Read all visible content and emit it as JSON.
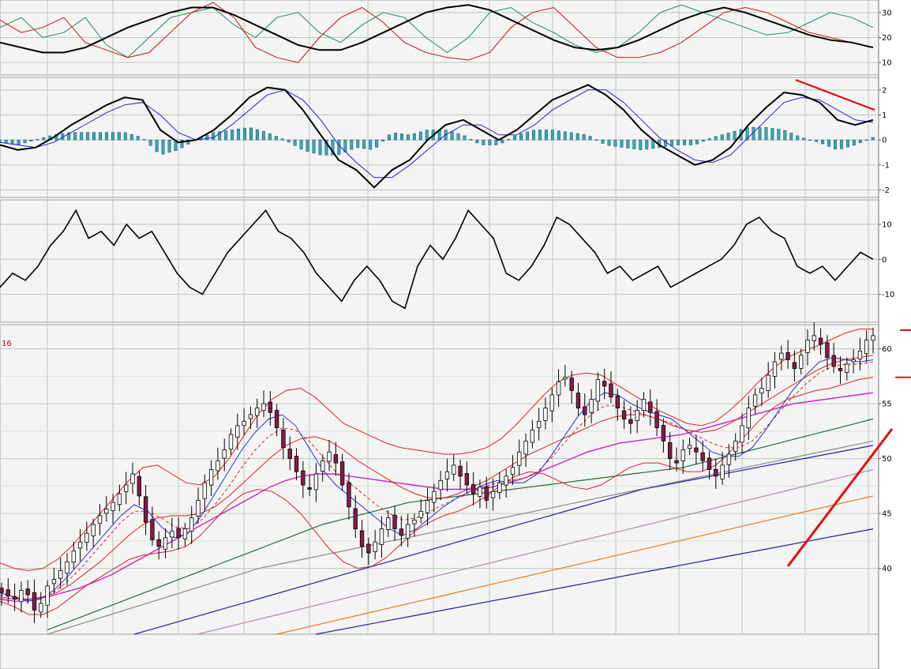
{
  "chart_data": [
    {
      "type": "line",
      "panel": "stochastic",
      "y_ticks": [
        10,
        20,
        30
      ],
      "ylim": [
        5,
        35
      ],
      "colors": {
        "black": "#000000",
        "green": "#1a8a5a",
        "red": "#cc1111"
      },
      "series": [
        {
          "values": [
            18,
            16,
            14,
            14,
            16,
            20,
            24,
            27,
            30,
            32,
            32,
            29,
            25,
            21,
            17,
            15,
            15,
            18,
            22,
            26,
            30,
            32,
            33,
            31,
            27,
            23,
            19,
            16,
            15,
            16,
            19,
            23,
            27,
            30,
            32,
            30,
            27,
            24,
            21,
            19,
            18,
            16
          ]
        },
        {
          "values": [
            24,
            28,
            20,
            22,
            28,
            17,
            12,
            20,
            28,
            30,
            32,
            25,
            20,
            28,
            30,
            22,
            18,
            25,
            30,
            28,
            20,
            14,
            20,
            30,
            32,
            26,
            22,
            17,
            14,
            16,
            22,
            30,
            33,
            30,
            27,
            24,
            21,
            22,
            26,
            30,
            28,
            24
          ]
        },
        {
          "values": [
            27,
            22,
            24,
            28,
            18,
            15,
            12,
            14,
            22,
            30,
            34,
            28,
            16,
            12,
            10,
            20,
            28,
            32,
            26,
            18,
            14,
            12,
            11,
            14,
            24,
            30,
            32,
            24,
            16,
            12,
            12,
            14,
            18,
            24,
            30,
            32,
            30,
            26,
            22,
            20,
            18,
            16
          ]
        }
      ]
    },
    {
      "type": "line",
      "panel": "macd",
      "y_ticks": [
        -2,
        -1,
        0,
        1,
        2
      ],
      "ylim": [
        -2.3,
        2.5
      ],
      "colors": {
        "macd": "#000000",
        "signal": "#2222cc",
        "hist_fill": "#3aaab0",
        "hist_edge": "#1a5a8a",
        "divergence": "#e01010"
      },
      "series": [
        {
          "name": "MACD",
          "values": [
            -0.2,
            -0.4,
            -0.3,
            0.1,
            0.6,
            1.0,
            1.4,
            1.7,
            1.6,
            0.4,
            -0.1,
            0.0,
            0.4,
            1.0,
            1.7,
            2.1,
            2.0,
            1.2,
            0.2,
            -0.8,
            -1.2,
            -1.9,
            -1.2,
            -0.8,
            0.0,
            0.6,
            0.8,
            0.4,
            0.0,
            0.4,
            1.0,
            1.6,
            1.9,
            2.2,
            1.8,
            1.2,
            0.4,
            -0.2,
            -0.6,
            -1.0,
            -0.8,
            -0.3,
            0.6,
            1.3,
            1.9,
            1.8,
            1.5,
            0.8,
            0.6,
            0.8
          ]
        },
        {
          "name": "Signal",
          "values": [
            -0.1,
            -0.2,
            -0.3,
            -0.1,
            0.3,
            0.7,
            1.1,
            1.4,
            1.5,
            1.0,
            0.3,
            0.0,
            0.1,
            0.6,
            1.2,
            1.8,
            2.0,
            1.6,
            0.8,
            -0.2,
            -0.9,
            -1.5,
            -1.5,
            -1.0,
            -0.4,
            0.2,
            0.6,
            0.6,
            0.2,
            0.2,
            0.6,
            1.2,
            1.6,
            2.0,
            2.0,
            1.5,
            0.8,
            0.1,
            -0.4,
            -0.8,
            -0.9,
            -0.6,
            0.1,
            0.8,
            1.5,
            1.7,
            1.6,
            1.2,
            0.8,
            0.7
          ]
        },
        {
          "name": "Histogram",
          "values": [
            -0.1,
            -0.2,
            0.0,
            0.2,
            0.3,
            0.3,
            0.3,
            0.3,
            0.1,
            -0.6,
            -0.4,
            0.0,
            0.3,
            0.4,
            0.5,
            0.3,
            0.0,
            -0.4,
            -0.6,
            -0.6,
            -0.3,
            -0.4,
            0.3,
            0.2,
            0.4,
            0.4,
            0.2,
            -0.2,
            -0.2,
            0.2,
            0.4,
            0.4,
            0.3,
            0.2,
            -0.2,
            -0.3,
            -0.4,
            -0.3,
            -0.2,
            -0.2,
            0.1,
            0.3,
            0.5,
            0.5,
            0.4,
            0.1,
            -0.1,
            -0.4,
            -0.2,
            0.1
          ]
        }
      ]
    },
    {
      "type": "line",
      "panel": "momentum",
      "y_ticks": [
        -10,
        0,
        10
      ],
      "ylim": [
        -18,
        17
      ],
      "colors": {
        "line": "#000000"
      },
      "series": [
        {
          "values": [
            -8,
            -4,
            -6,
            -2,
            4,
            8,
            14,
            6,
            8,
            4,
            10,
            6,
            8,
            2,
            -4,
            -8,
            -10,
            -4,
            2,
            6,
            10,
            14,
            8,
            6,
            2,
            -4,
            -8,
            -12,
            -6,
            -2,
            -6,
            -12,
            -14,
            -2,
            4,
            0,
            6,
            14,
            10,
            6,
            -4,
            -6,
            -2,
            4,
            12,
            10,
            6,
            2,
            -4,
            -2,
            -6,
            -4,
            -2,
            -8,
            -6,
            -4,
            -2,
            0,
            4,
            10,
            12,
            8,
            6,
            -2,
            -4,
            -2,
            -6,
            -2,
            2,
            0
          ]
        }
      ]
    },
    {
      "type": "candlestick",
      "panel": "price",
      "y_ticks": [
        40,
        45,
        50,
        55,
        60
      ],
      "ylim": [
        34.0,
        62.2
      ],
      "corner_label": "16",
      "colors": {
        "candle_down_fill": "#8a1a4a",
        "candle_up_fill": "#ffffff",
        "candle_edge": "#000000",
        "bollinger": "#dd2222",
        "ma_fast": "#2233cc",
        "ma_dashed": "#dd2222",
        "ma_magenta": "#cc22cc",
        "ma_green": "#2a6a3a",
        "ma_gray": "#888888",
        "ma_gray2": "#aa88aa",
        "ma_orange": "#ee7711",
        "ma_navy": "#22229a",
        "annotation": "#e01010"
      },
      "close": [
        37.8,
        37.5,
        37.2,
        38.0,
        37.6,
        36.2,
        36.8,
        38.4,
        39.0,
        39.8,
        40.6,
        41.6,
        42.4,
        43.2,
        44.0,
        44.8,
        45.4,
        46.0,
        46.8,
        47.6,
        48.6,
        46.6,
        44.2,
        42.6,
        42.0,
        42.8,
        43.4,
        42.8,
        43.6,
        44.6,
        46.2,
        47.8,
        49.0,
        49.8,
        50.8,
        52.2,
        53.0,
        53.4,
        54.0,
        54.6,
        55.0,
        54.2,
        52.8,
        51.0,
        50.0,
        48.8,
        47.6,
        47.2,
        48.6,
        49.8,
        50.6,
        49.6,
        47.6,
        45.6,
        43.6,
        42.0,
        41.4,
        42.4,
        43.6,
        44.6,
        43.6,
        43.0,
        44.0,
        44.4,
        45.2,
        46.2,
        47.0,
        48.0,
        48.8,
        49.4,
        48.4,
        47.6,
        46.8,
        47.4,
        46.2,
        47.0,
        47.8,
        48.4,
        49.2,
        50.6,
        51.6,
        52.6,
        53.4,
        54.6,
        55.8,
        57.0,
        57.4,
        56.2,
        54.6,
        54.0,
        55.4,
        57.2,
        56.6,
        55.6,
        54.6,
        53.6,
        53.2,
        54.4,
        55.4,
        54.2,
        52.8,
        51.6,
        50.0,
        49.6,
        50.8,
        51.2,
        50.6,
        49.8,
        49.0,
        48.4,
        49.4,
        50.4,
        51.6,
        53.0,
        54.6,
        55.8,
        56.4,
        57.6,
        58.8,
        59.6,
        59.0,
        58.2,
        59.4,
        60.8,
        61.2,
        60.4,
        59.2,
        58.4,
        58.0,
        58.6,
        59.0,
        59.8,
        60.8,
        61.2
      ],
      "bands": {
        "bb_upper": [
          40.5,
          40.0,
          39.8,
          40.0,
          40.8,
          42.0,
          43.5,
          45.0,
          46.5,
          48.0,
          49.2,
          49.4,
          48.6,
          47.8,
          47.6,
          48.4,
          50.0,
          52.0,
          54.0,
          55.4,
          56.2,
          56.4,
          55.6,
          54.4,
          53.2,
          52.6,
          52.0,
          51.4,
          51.0,
          50.8,
          50.6,
          50.4,
          50.4,
          50.6,
          51.0,
          51.8,
          53.0,
          54.4,
          55.8,
          57.0,
          57.6,
          57.8,
          57.6,
          56.8,
          56.0,
          55.2,
          54.4,
          53.8,
          53.2,
          53.0,
          53.4,
          54.4,
          55.6,
          57.0,
          58.2,
          59.2,
          59.8,
          60.2,
          60.8,
          61.4,
          61.8,
          61.8
        ],
        "bb_lower": [
          37.0,
          36.5,
          35.8,
          35.8,
          36.4,
          37.4,
          38.4,
          39.2,
          40.0,
          40.8,
          41.2,
          41.4,
          41.6,
          42.0,
          43.0,
          44.4,
          45.8,
          46.8,
          47.2,
          47.0,
          46.2,
          45.0,
          43.4,
          41.8,
          40.6,
          40.0,
          40.2,
          41.0,
          42.2,
          43.4,
          44.2,
          44.8,
          45.2,
          45.8,
          46.6,
          47.6,
          48.4,
          48.8,
          48.6,
          48.0,
          47.4,
          47.2,
          47.6,
          48.4,
          49.2,
          49.6,
          49.6,
          49.2,
          48.8,
          48.8,
          49.4,
          50.6,
          52.0,
          53.4,
          54.6,
          55.4,
          55.8,
          56.2,
          56.4,
          56.8,
          57.2,
          57.4
        ],
        "ma_fast": [
          37.8,
          37.4,
          37.0,
          37.2,
          38.0,
          39.2,
          40.6,
          42.0,
          43.4,
          44.8,
          45.8,
          45.2,
          43.8,
          42.8,
          43.2,
          44.8,
          46.8,
          48.8,
          50.8,
          52.4,
          53.6,
          54.0,
          53.0,
          51.0,
          49.0,
          47.6,
          46.6,
          45.6,
          44.6,
          43.6,
          43.0,
          43.6,
          44.6,
          45.6,
          46.4,
          47.0,
          47.6,
          48.0,
          47.8,
          47.8,
          48.6,
          50.2,
          52.0,
          53.8,
          55.2,
          56.0,
          55.8,
          55.0,
          54.4,
          54.0,
          53.6,
          52.6,
          51.6,
          50.6,
          50.2,
          50.2,
          51.0,
          52.6,
          54.4,
          56.2,
          57.6,
          58.8,
          59.2,
          59.0,
          58.8,
          59.0
        ],
        "ma_dashed": [
          37.6,
          37.4,
          37.2,
          37.2,
          37.8,
          38.8,
          40.0,
          41.4,
          42.8,
          44.2,
          45.2,
          45.2,
          44.6,
          43.8,
          43.6,
          44.4,
          45.8,
          47.4,
          49.2,
          50.8,
          52.0,
          52.8,
          52.6,
          51.6,
          50.2,
          48.8,
          47.8,
          46.8,
          45.8,
          45.0,
          44.4,
          44.6,
          45.2,
          45.8,
          46.4,
          46.8,
          47.4,
          47.8,
          48.0,
          48.2,
          48.8,
          50.0,
          51.4,
          52.8,
          54.0,
          54.8,
          54.8,
          54.4,
          54.0,
          53.6,
          53.2,
          52.6,
          52.0,
          51.4,
          51.0,
          51.0,
          51.6,
          52.8,
          54.2,
          55.6,
          56.8,
          57.8,
          58.4,
          58.6,
          58.6,
          58.8
        ],
        "ma_mid": [
          37.4,
          37.2,
          37.2,
          37.4,
          37.8,
          38.6,
          39.6,
          40.6,
          41.8,
          43.0,
          44.0,
          44.6,
          44.8,
          44.8,
          45.0,
          45.6,
          46.6,
          47.8,
          49.0,
          50.2,
          51.2,
          51.8,
          52.0,
          51.6,
          50.8,
          49.8,
          49.0,
          48.2,
          47.4,
          46.8,
          46.4,
          46.4,
          46.8,
          47.4,
          48.0,
          48.8,
          49.6,
          50.4,
          51.0,
          51.6,
          52.2,
          52.8,
          53.4,
          53.8,
          54.0,
          54.0,
          53.6,
          53.0,
          52.6,
          52.4,
          52.6,
          53.2,
          54.0,
          54.8,
          55.6,
          56.4,
          57.2,
          58.0,
          58.6,
          59.0,
          59.2,
          59.4
        ],
        "ma_magenta": [
          37.2,
          37.0,
          37.2,
          37.4,
          37.8,
          38.2,
          38.8,
          39.4,
          40.2,
          41.0,
          41.8,
          42.6,
          43.4,
          44.2,
          45.0,
          45.8,
          46.6,
          47.4,
          48.0,
          48.4,
          48.6,
          48.6,
          48.4,
          48.2,
          48.0,
          47.8,
          47.6,
          47.4,
          47.2,
          47.2,
          47.2,
          47.4,
          47.8,
          48.2,
          48.8,
          49.4,
          50.0,
          50.6,
          51.0,
          51.4,
          51.6,
          51.8,
          52.0,
          52.2,
          52.6,
          53.0,
          53.4,
          53.8,
          54.2,
          54.6,
          55.0,
          55.2,
          55.4,
          55.6,
          55.8,
          56.0
        ],
        "ma_green": [
          34.4,
          35.0,
          35.6,
          36.2,
          36.8,
          37.4,
          38.0,
          38.6,
          39.2,
          39.8,
          40.4,
          41.0,
          41.6,
          42.2,
          42.8,
          43.4,
          44.0,
          44.4,
          44.8,
          45.2,
          45.6,
          46.0,
          46.2,
          46.4,
          46.6,
          46.8,
          47.0,
          47.2,
          47.4,
          47.6,
          47.8,
          48.0,
          48.2,
          48.4,
          48.6,
          48.8,
          49.0,
          49.2,
          49.6,
          50.0,
          50.4,
          50.8,
          51.2,
          51.6,
          52.0,
          52.4,
          52.8,
          53.2,
          53.6
        ],
        "ma_gray": [
          34.0,
          34.6,
          35.2,
          35.8,
          36.4,
          37.0,
          37.6,
          38.2,
          38.8,
          39.4,
          40.0,
          40.4,
          40.8,
          41.2,
          41.6,
          42.0,
          42.4,
          42.8,
          43.2,
          43.6,
          44.0,
          44.4,
          44.8,
          45.2,
          45.6,
          46.0,
          46.4,
          46.8,
          47.2,
          47.6,
          48.0,
          48.4,
          48.8,
          49.2,
          49.6,
          50.0,
          50.4,
          50.8,
          51.2,
          51.6
        ],
        "ma_navy_upper": [
          34.0,
          34.6,
          35.2,
          35.8,
          36.4,
          37.0,
          37.6,
          38.2,
          38.8,
          39.4,
          40.0,
          40.6,
          41.2,
          41.8,
          42.4,
          43.0,
          43.6,
          44.2,
          44.8,
          45.4,
          46.0,
          46.6,
          47.2,
          47.6,
          48.0,
          48.4,
          48.8,
          49.2,
          49.6,
          50.0,
          50.4,
          50.8,
          51.2
        ],
        "ma_gray2": [
          34.0,
          34.6,
          35.2,
          35.8,
          36.4,
          37.0,
          37.6,
          38.2,
          38.8,
          39.4,
          40.0,
          40.6,
          41.2,
          41.8,
          42.4,
          43.0,
          43.6,
          44.2,
          44.8,
          45.4,
          46.0,
          46.6,
          47.2,
          47.8,
          48.4,
          49.0
        ],
        "ma_orange": [
          34.0,
          34.6,
          35.2,
          35.8,
          36.4,
          37.0,
          37.6,
          38.2,
          38.8,
          39.4,
          40.0,
          40.6,
          41.2,
          41.8,
          42.4,
          43.0,
          43.6,
          44.2,
          44.8,
          45.4,
          46.0,
          46.6
        ],
        "ma_navy_lower": [
          34.0,
          34.6,
          35.2,
          35.8,
          36.4,
          37.0,
          37.6,
          38.2,
          38.8,
          39.4,
          40.0,
          40.6,
          41.2,
          41.8,
          42.4,
          43.0,
          43.6
        ]
      },
      "annotations": {
        "trendline": {
          "from": [
            120,
            40.2
          ],
          "to": [
            280,
            52.7
          ]
        },
        "resistance": {
          "from": [
            252,
            61.7
          ],
          "to": [
            280,
            61.7
          ]
        },
        "support": {
          "from": [
            263,
            57.4
          ],
          "to": [
            286,
            57.4
          ]
        },
        "circles": [
          {
            "center": [
              256,
              61.4
            ]
          },
          {
            "center": [
              273,
              61.4
            ]
          }
        ]
      }
    }
  ]
}
